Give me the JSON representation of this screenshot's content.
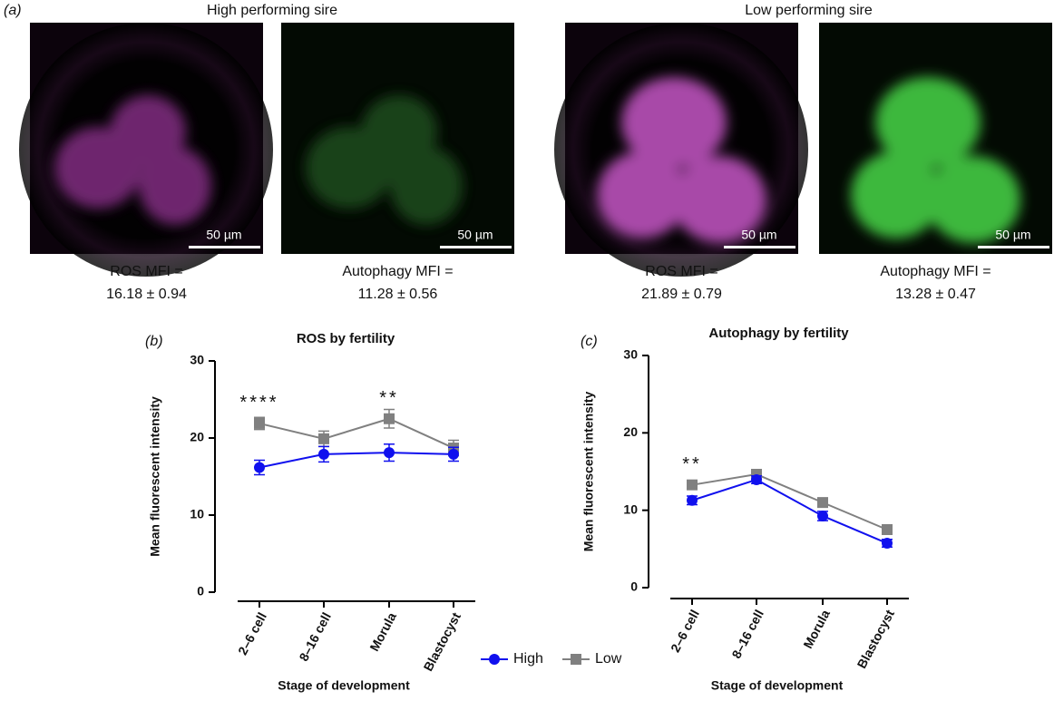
{
  "panel_a": {
    "label": "(a)",
    "groups": [
      {
        "title": "High performing sire",
        "images": [
          {
            "caption": "ROS MFI =",
            "value": "16.18 ± 0.94",
            "scale_bar": "50 µm"
          },
          {
            "caption": "Autophagy MFI =",
            "value": "11.28 ± 0.56",
            "scale_bar": "50 µm"
          }
        ]
      },
      {
        "title": "Low performing sire",
        "images": [
          {
            "caption": "ROS MFI =",
            "value": "21.89 ± 0.79",
            "scale_bar": "50 µm"
          },
          {
            "caption": "Autophagy MFI =",
            "value": "13.28 ± 0.47",
            "scale_bar": "50 µm"
          }
        ]
      }
    ]
  },
  "chart_data": [
    {
      "type": "line",
      "panel_label": "(b)",
      "title": "ROS by fertility",
      "x_label": "Stage of development",
      "y_label": "Mean fluorescent intensity",
      "categories": [
        "2–6 cell",
        "8–16 cell",
        "Morula",
        "Blastocyst"
      ],
      "series": [
        {
          "name": "High",
          "color": "#1010ee",
          "marker": "circle",
          "values": [
            16.18,
            17.9,
            18.1,
            17.9
          ],
          "errors": [
            0.94,
            1.0,
            1.1,
            0.9
          ]
        },
        {
          "name": "Low",
          "color": "#808080",
          "marker": "square",
          "values": [
            21.89,
            19.9,
            22.5,
            18.7
          ],
          "errors": [
            0.79,
            1.0,
            1.2,
            1.0
          ]
        }
      ],
      "significance": [
        "****",
        null,
        "**",
        null
      ],
      "ylim": [
        0,
        30
      ],
      "yticks": [
        0,
        10,
        20,
        30
      ]
    },
    {
      "type": "line",
      "panel_label": "(c)",
      "title": "Autophagy by fertility",
      "x_label": "Stage of development",
      "y_label": "Mean fluorescent intensity",
      "categories": [
        "2–6 cell",
        "8–16 cell",
        "Morula",
        "Blastocyst"
      ],
      "series": [
        {
          "color": "#1010ee",
          "marker": "circle",
          "values": [
            11.28,
            13.95,
            9.26,
            5.74
          ],
          "errors": [
            0.56,
            0.5,
            0.6,
            0.5
          ]
        },
        {
          "color": "#808080",
          "marker": "square",
          "values": [
            13.28,
            14.65,
            11.0,
            7.5
          ],
          "errors": [
            0.47,
            0.4,
            0.5,
            0.4
          ]
        }
      ],
      "significance": [
        "**",
        null,
        null,
        null
      ],
      "ylim": [
        0,
        30
      ],
      "yticks": [
        0,
        10,
        20,
        30
      ]
    }
  ]
}
